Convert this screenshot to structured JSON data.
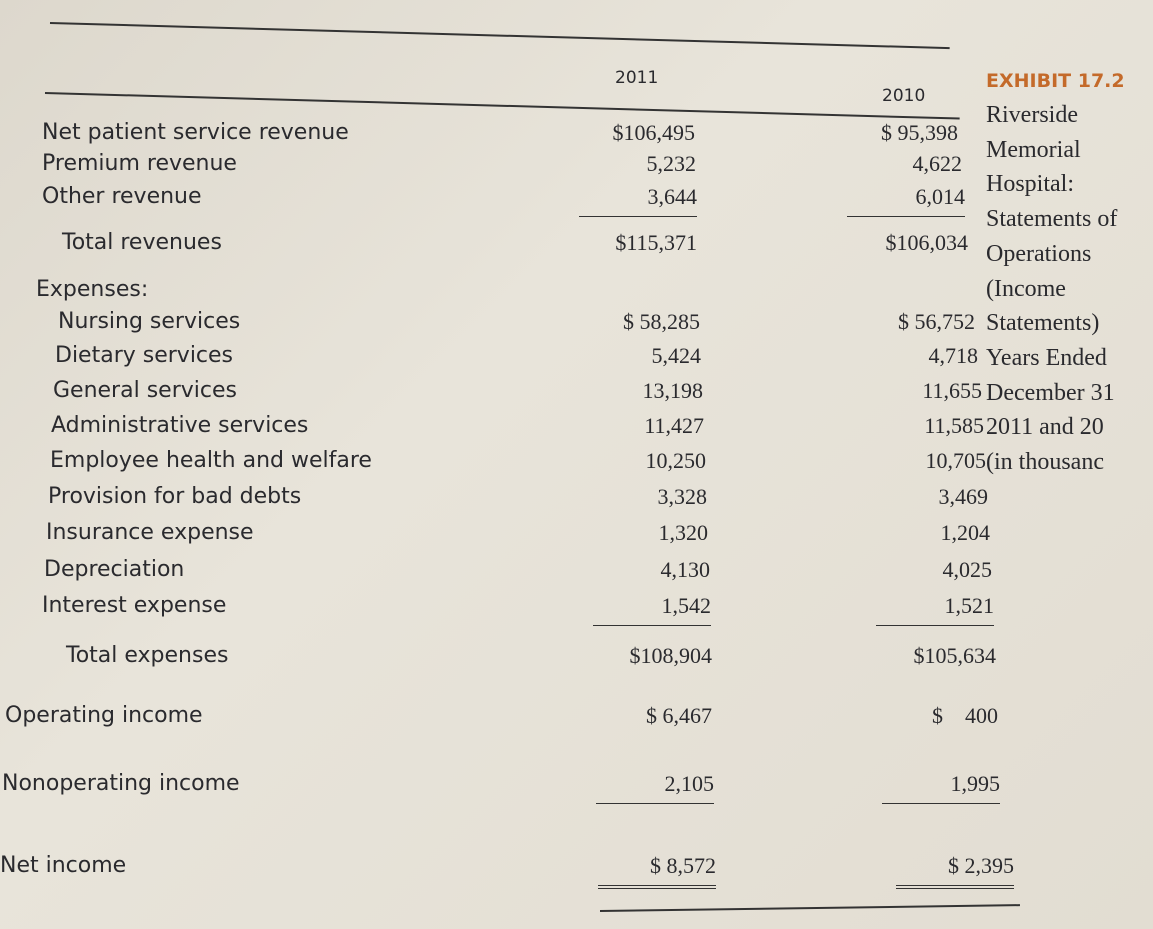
{
  "exhibit": {
    "title": "EXHIBIT 17.2",
    "caption": [
      "Riverside",
      "Memorial",
      "Hospital:",
      "Statements of",
      "Operations",
      "(Income",
      "Statements)",
      "Years Ended",
      "December 31",
      "2011 and 20",
      "(in thousanc"
    ]
  },
  "table": {
    "columns": [
      "2011",
      "2010"
    ],
    "rows": [
      [
        "Net patient service revenue",
        "$106,495",
        "$ 95,398"
      ],
      [
        "Premium revenue",
        "5,232",
        "4,622"
      ],
      [
        "Other revenue",
        "3,644",
        "6,014"
      ],
      [
        "Total revenues",
        "$115,371",
        "$106,034"
      ],
      [
        "Expenses:",
        null,
        null
      ],
      [
        "Nursing services",
        "$ 58,285",
        "$ 56,752"
      ],
      [
        "Dietary services",
        "5,424",
        "4,718"
      ],
      [
        "General services",
        "13,198",
        "11,655"
      ],
      [
        "Administrative services",
        "11,427",
        "11,585"
      ],
      [
        "Employee health and welfare",
        "10,250",
        "10,705"
      ],
      [
        "Provision for bad debts",
        "3,328",
        "3,469"
      ],
      [
        "Insurance expense",
        "1,320",
        "1,204"
      ],
      [
        "Depreciation",
        "4,130",
        "4,025"
      ],
      [
        "Interest expense",
        "1,542",
        "1,521"
      ],
      [
        "Total expenses",
        "$108,904",
        "$105,634"
      ],
      [
        "Operating income",
        "$ 6,467",
        "$    400"
      ],
      [
        "Nonoperating income",
        "2,105",
        "1,995"
      ],
      [
        "Net income",
        "$ 8,572",
        "$ 2,395"
      ]
    ]
  }
}
